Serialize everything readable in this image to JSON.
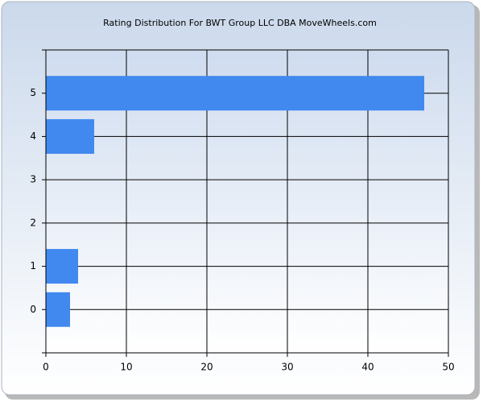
{
  "chart_data": {
    "type": "hbar",
    "title": "Rating Distribution For BWT Group LLC DBA MoveWheels.com",
    "categories": [
      "0",
      "1",
      "2",
      "3",
      "4",
      "5"
    ],
    "values": [
      3,
      4,
      0,
      0,
      6,
      47
    ],
    "color": "#4189ee",
    "xlim": [
      0,
      50
    ],
    "xticks": [
      0,
      10,
      20,
      30,
      40,
      50
    ],
    "grid": true
  }
}
